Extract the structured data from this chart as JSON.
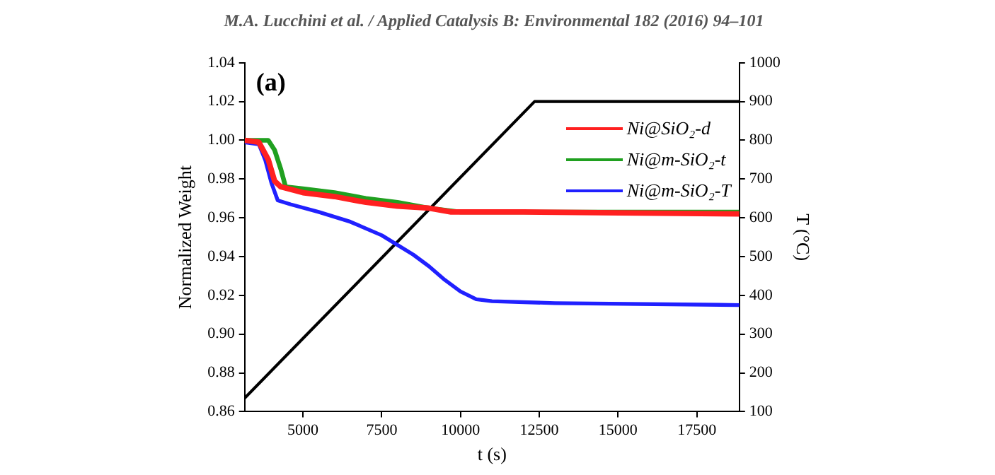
{
  "chart_data": {
    "type": "line",
    "title": "M.A. Lucchini et al. / Applied Catalysis B: Environmental 182 (2016) 94–101",
    "xlabel": "t (s)",
    "ylabel": "Normalized Weight",
    "y2label": "T (°C)",
    "annotations": [
      "(a)"
    ],
    "xlim": [
      3150,
      18850
    ],
    "xticks": [
      5000,
      7500,
      10000,
      12500,
      15000,
      17500
    ],
    "ylim": [
      0.86,
      1.04
    ],
    "yticks": [
      0.86,
      0.88,
      {
        "value": 0.9,
        "label": "0.90"
      },
      0.92,
      0.94,
      0.96,
      0.98,
      {
        "value": 1,
        "label": "1.00"
      },
      1.02,
      1.04
    ],
    "y2lim": [
      100,
      1000
    ],
    "y2ticks": [
      100,
      200,
      300,
      400,
      500,
      600,
      700,
      800,
      900,
      1000
    ],
    "grid": false,
    "legend": "top right",
    "marker": "none",
    "line_style": "solid",
    "series": [
      {
        "name": "Ni@SiO₂-d",
        "color": "#ff2020",
        "x": [
          3150,
          3600,
          3900,
          4100,
          4300,
          5000,
          6000,
          7000,
          8000,
          9000,
          9700,
          12000,
          18850
        ],
        "values": [
          1.0,
          0.999,
          0.99,
          0.979,
          0.976,
          0.973,
          0.971,
          0.968,
          0.966,
          0.965,
          0.963,
          0.963,
          0.962
        ]
      },
      {
        "name": "Ni@m-SiO₂-t",
        "color": "#20a020",
        "x": [
          3150,
          3900,
          4100,
          4300,
          4450,
          5000,
          6000,
          7000,
          8000,
          9000,
          10000,
          18850
        ],
        "values": [
          1.0,
          1.0,
          0.995,
          0.985,
          0.976,
          0.975,
          0.973,
          0.97,
          0.968,
          0.965,
          0.963,
          0.963
        ]
      },
      {
        "name": "Ni@m-SiO₂-T",
        "color": "#2020ff",
        "x": [
          3150,
          3600,
          3800,
          4000,
          4200,
          4600,
          5500,
          6500,
          7500,
          8500,
          9000,
          9500,
          10000,
          10500,
          11000,
          13000,
          18850
        ],
        "values": [
          0.999,
          0.998,
          0.99,
          0.978,
          0.969,
          0.967,
          0.963,
          0.958,
          0.951,
          0.941,
          0.935,
          0.928,
          0.922,
          0.918,
          0.917,
          0.916,
          0.915
        ]
      },
      {
        "color": "#000000",
        "axis": "y2",
        "x": [
          3150,
          12350,
          18850
        ],
        "values": [
          135,
          900,
          900
        ]
      }
    ]
  }
}
